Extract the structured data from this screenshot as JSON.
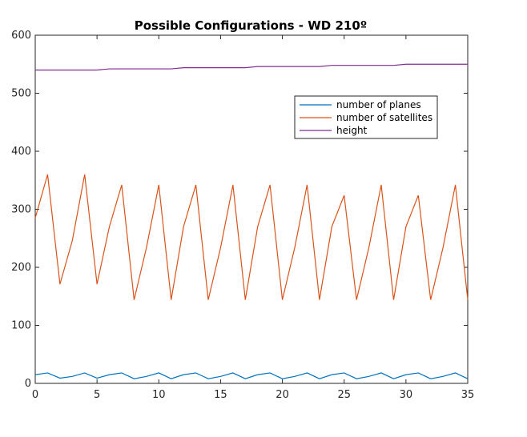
{
  "chart_data": {
    "type": "line",
    "title": "Possible Configurations - WD 210º",
    "xlabel": "",
    "ylabel": "",
    "xlim": [
      0,
      35
    ],
    "ylim": [
      0,
      600
    ],
    "xticks": [
      0,
      5,
      10,
      15,
      20,
      25,
      30,
      35
    ],
    "yticks": [
      0,
      100,
      200,
      300,
      400,
      500,
      600
    ],
    "grid": false,
    "legend_position": "top-right",
    "x": [
      0,
      1,
      2,
      3,
      4,
      5,
      6,
      7,
      8,
      9,
      10,
      11,
      12,
      13,
      14,
      15,
      16,
      17,
      18,
      19,
      20,
      21,
      22,
      23,
      24,
      25,
      26,
      27,
      28,
      29,
      30,
      31,
      32,
      33,
      34,
      35
    ],
    "series": [
      {
        "name": "number of planes",
        "color": "#0072bd",
        "values": [
          15,
          18,
          9,
          12,
          18,
          9,
          15,
          18,
          8,
          12,
          18,
          8,
          15,
          18,
          8,
          12,
          18,
          8,
          15,
          18,
          8,
          12,
          18,
          8,
          15,
          18,
          8,
          12,
          18,
          8,
          15,
          18,
          8,
          12,
          18,
          8
        ]
      },
      {
        "name": "number of satellites",
        "color": "#d95319",
        "values": [
          285,
          360,
          171,
          246,
          360,
          171,
          270,
          342,
          144,
          234,
          342,
          144,
          270,
          342,
          144,
          234,
          342,
          144,
          270,
          342,
          144,
          234,
          342,
          144,
          270,
          324,
          144,
          234,
          342,
          144,
          270,
          324,
          144,
          234,
          342,
          144
        ]
      },
      {
        "name": "height",
        "color": "#7e2f8e",
        "values": [
          540,
          540,
          540,
          540,
          540,
          540,
          542,
          542,
          542,
          542,
          542,
          542,
          544,
          544,
          544,
          544,
          544,
          544,
          546,
          546,
          546,
          546,
          546,
          546,
          548,
          548,
          548,
          548,
          548,
          548,
          550,
          550,
          550,
          550,
          550,
          550
        ]
      }
    ]
  }
}
